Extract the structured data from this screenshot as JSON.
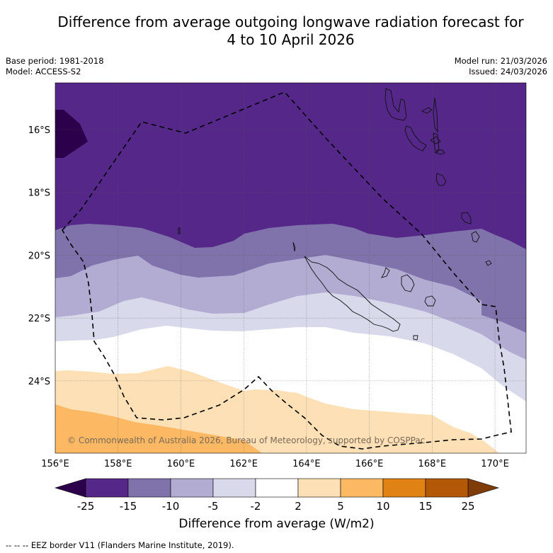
{
  "title": {
    "line1": "Difference from average outgoing longwave radiation forecast for",
    "line2": "4 to 10 April 2026"
  },
  "meta": {
    "base_period": "Base period: 1981-2018",
    "model": "Model: ACCESS-S2",
    "model_run": "Model run: 21/03/2026",
    "issued": "Issued: 24/03/2026"
  },
  "map": {
    "region": "Southwest Pacific (Vanuatu / New Caledonia)",
    "lon_range": [
      156,
      171
    ],
    "lat_range": [
      -14.5,
      -26.3
    ],
    "lon_ticks": [
      "156°E",
      "158°E",
      "160°E",
      "162°E",
      "164°E",
      "166°E",
      "168°E",
      "170°E"
    ],
    "lat_ticks": [
      "16°S",
      "18°S",
      "20°S",
      "22°S",
      "24°S"
    ],
    "copyright": "© Commonwealth of Australia 2026, Bureau of Meteorology, supported by COSPPac",
    "contour_bands": [
      {
        "range": "< -25",
        "color": "#2d004b"
      },
      {
        "range": "-25 to -15",
        "color": "#542788"
      },
      {
        "range": "-15 to -10",
        "color": "#8073ac"
      },
      {
        "range": "-10 to -5",
        "color": "#b2abd2"
      },
      {
        "range": "-5 to -2",
        "color": "#d8daeb"
      },
      {
        "range": "-2 to 2",
        "color": "#ffffff"
      },
      {
        "range": "2 to 5",
        "color": "#fee0b6"
      },
      {
        "range": "5 to 10",
        "color": "#fdb863"
      }
    ]
  },
  "colorbar": {
    "title": "Difference from average (W/m2)",
    "ticks": [
      "-25",
      "-15",
      "-10",
      "-5",
      "-2",
      "2",
      "5",
      "10",
      "15",
      "25"
    ],
    "under_color": "#2d004b",
    "over_color": "#7f3b08",
    "colors": [
      "#542788",
      "#8073ac",
      "#b2abd2",
      "#d8daeb",
      "#ffffff",
      "#fee0b6",
      "#fdb863",
      "#e08214",
      "#b35806"
    ]
  },
  "footer": "--  --  -- EEZ border V11 (Flanders Marine Institute, 2019)."
}
